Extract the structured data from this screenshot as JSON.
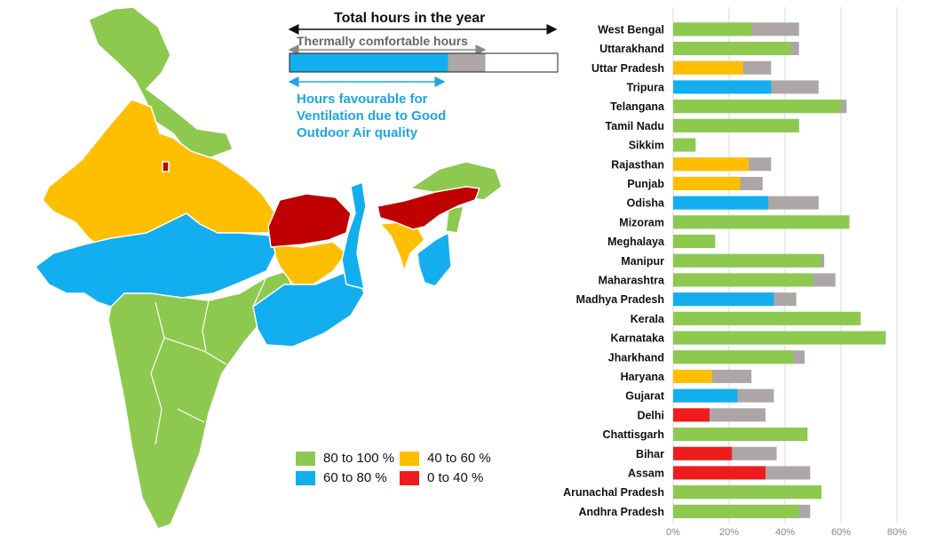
{
  "colors": {
    "green": "#8dc94f",
    "blue": "#13aeef",
    "orange": "#ffbf00",
    "red": "#ee1c1c",
    "dark_red": "#c00000",
    "grey": "#aca6a6",
    "border": "#ffffff"
  },
  "key": {
    "total_label": "Total hours in the year",
    "comfort_label": "Thermally comfortable hours",
    "ventilation_label": "Hours favourable for Ventilation due to Good Outdoor Air quality"
  },
  "legend": [
    {
      "label": "80 to 100 %",
      "color": "#8dc94f"
    },
    {
      "label": "40 to 60 %",
      "color": "#ffbf00"
    },
    {
      "label": "60 to 80 %",
      "color": "#13aeef"
    },
    {
      "label": "0 to 40 %",
      "color": "#ee1c1c"
    }
  ],
  "chart_data": {
    "type": "bar",
    "orientation": "horizontal",
    "stacked": true,
    "categories": [
      "West Bengal",
      "Uttarakhand",
      "Uttar Pradesh",
      "Tripura",
      "Telangana",
      "Tamil Nadu",
      "Sikkim",
      "Rajasthan",
      "Punjab",
      "Odisha",
      "Mizoram",
      "Meghalaya",
      "Manipur",
      "Maharashtra",
      "Madhya Pradesh",
      "Kerala",
      "Karnataka",
      "Jharkhand",
      "Haryana",
      "Gujarat",
      "Delhi",
      "Chattisgarh",
      "Bihar",
      "Assam",
      "Arunachal Pradesh",
      "Andhra Pradesh"
    ],
    "ventilation_values": [
      28,
      42,
      25,
      35,
      60,
      45,
      8,
      27,
      24,
      34,
      63,
      15,
      53,
      50,
      36,
      67,
      76,
      43,
      14,
      23,
      13,
      48,
      21,
      33,
      53,
      45
    ],
    "comfortable_values": [
      45,
      45,
      35,
      52,
      62,
      45,
      8,
      35,
      32,
      52,
      63,
      15,
      54,
      58,
      44,
      67,
      76,
      47,
      28,
      36,
      33,
      48,
      37,
      49,
      53,
      49
    ],
    "bar_categories": [
      "green",
      "green",
      "orange",
      "blue",
      "green",
      "green",
      "green",
      "orange",
      "orange",
      "blue",
      "green",
      "green",
      "green",
      "green",
      "blue",
      "green",
      "green",
      "green",
      "orange",
      "blue",
      "red",
      "green",
      "red",
      "red",
      "green",
      "green"
    ],
    "xlim": [
      0,
      80
    ],
    "x_ticks": [
      "0%",
      "20%",
      "40%",
      "60%",
      "80%"
    ],
    "grid": true
  }
}
